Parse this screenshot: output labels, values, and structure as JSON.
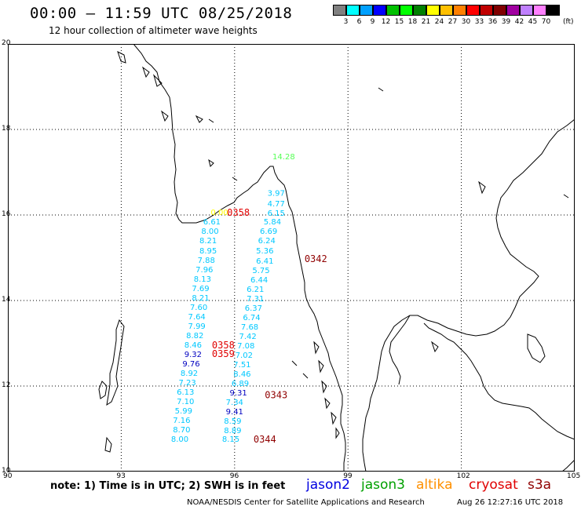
{
  "header": {
    "title": "00:00 – 11:59 UTC 08/25/2018",
    "subtitle": "12 hour collection of altimeter wave heights"
  },
  "color_scale": {
    "swatches": [
      "#808080",
      "#00ffff",
      "#00a0ff",
      "#0000ff",
      "#00c000",
      "#00ff00",
      "#008000",
      "#ffff00",
      "#ffc000",
      "#ff8000",
      "#ff0000",
      "#c00000",
      "#800000",
      "#a000a0",
      "#c080ff",
      "#ff80ff",
      "#000000"
    ],
    "ticks": [
      "3",
      "6",
      "9",
      "12",
      "15",
      "18",
      "21",
      "24",
      "27",
      "30",
      "33",
      "36",
      "39",
      "42",
      "45",
      "70"
    ],
    "unit": "(ft)"
  },
  "axes": {
    "lat_labels": [
      "20",
      "18",
      "16",
      "14",
      "12",
      "10"
    ],
    "lat_values": [
      20,
      18,
      16,
      14,
      12,
      10
    ],
    "lon_labels": [
      "90",
      "93",
      "96",
      "99",
      "102",
      "105"
    ],
    "lon_values": [
      90,
      93,
      96,
      99,
      102,
      105
    ]
  },
  "observations": [
    {
      "text": "14.28",
      "lon": 97.3,
      "lat": 17.3,
      "color": "#55ff55"
    },
    {
      "text": "3.97",
      "lon": 97.1,
      "lat": 16.45,
      "color": "#00c8ff"
    },
    {
      "text": "4.77",
      "lon": 97.1,
      "lat": 16.2,
      "color": "#00c8ff"
    },
    {
      "text": "6.15",
      "lon": 97.1,
      "lat": 15.98,
      "color": "#00c8ff"
    },
    {
      "text": "5.84",
      "lon": 97.0,
      "lat": 15.78,
      "color": "#00c8ff"
    },
    {
      "text": "6.69",
      "lon": 96.9,
      "lat": 15.56,
      "color": "#00c8ff"
    },
    {
      "text": "6.24",
      "lon": 96.85,
      "lat": 15.34,
      "color": "#00c8ff"
    },
    {
      "text": "5.36",
      "lon": 96.8,
      "lat": 15.1,
      "color": "#00c8ff"
    },
    {
      "text": "6.41",
      "lon": 96.8,
      "lat": 14.86,
      "color": "#00c8ff"
    },
    {
      "text": "5.75",
      "lon": 96.7,
      "lat": 14.64,
      "color": "#00c8ff"
    },
    {
      "text": "6.44",
      "lon": 96.65,
      "lat": 14.42,
      "color": "#00c8ff"
    },
    {
      "text": "6.21",
      "lon": 96.55,
      "lat": 14.2,
      "color": "#00c8ff"
    },
    {
      "text": "7.31",
      "lon": 96.55,
      "lat": 13.98,
      "color": "#00c8ff"
    },
    {
      "text": "6.37",
      "lon": 96.5,
      "lat": 13.76,
      "color": "#00c8ff"
    },
    {
      "text": "6.74",
      "lon": 96.45,
      "lat": 13.54,
      "color": "#00c8ff"
    },
    {
      "text": "7.68",
      "lon": 96.4,
      "lat": 13.32,
      "color": "#00c8ff"
    },
    {
      "text": "7.42",
      "lon": 96.35,
      "lat": 13.1,
      "color": "#00c8ff"
    },
    {
      "text": "7.08",
      "lon": 96.3,
      "lat": 12.88,
      "color": "#00c8ff"
    },
    {
      "text": "7.02",
      "lon": 96.25,
      "lat": 12.66,
      "color": "#00c8ff"
    },
    {
      "text": "7.51",
      "lon": 96.2,
      "lat": 12.44,
      "color": "#00c8ff"
    },
    {
      "text": "8.46",
      "lon": 96.2,
      "lat": 12.22,
      "color": "#00c8ff"
    },
    {
      "text": "6.89",
      "lon": 96.15,
      "lat": 12.0,
      "color": "#00c8ff"
    },
    {
      "text": "9.31",
      "lon": 96.1,
      "lat": 11.78,
      "color": "#0000c0"
    },
    {
      "text": "7.34",
      "lon": 96.0,
      "lat": 11.56,
      "color": "#00c8ff"
    },
    {
      "text": "9.41",
      "lon": 96.0,
      "lat": 11.34,
      "color": "#0000c0"
    },
    {
      "text": "8.59",
      "lon": 95.95,
      "lat": 11.12,
      "color": "#00c8ff"
    },
    {
      "text": "8.89",
      "lon": 95.95,
      "lat": 10.9,
      "color": "#00c8ff"
    },
    {
      "text": "8.15",
      "lon": 95.9,
      "lat": 10.7,
      "color": "#00c8ff"
    },
    {
      "text": "0.00",
      "lon": 95.6,
      "lat": 16.0,
      "color": "#ffff00"
    },
    {
      "text": "6.61",
      "lon": 95.4,
      "lat": 15.78,
      "color": "#00c8ff"
    },
    {
      "text": "8.00",
      "lon": 95.35,
      "lat": 15.56,
      "color": "#00c8ff"
    },
    {
      "text": "8.21",
      "lon": 95.3,
      "lat": 15.34,
      "color": "#00c8ff"
    },
    {
      "text": "8.95",
      "lon": 95.3,
      "lat": 15.1,
      "color": "#00c8ff"
    },
    {
      "text": "7.88",
      "lon": 95.25,
      "lat": 14.88,
      "color": "#00c8ff"
    },
    {
      "text": "7.96",
      "lon": 95.2,
      "lat": 14.66,
      "color": "#00c8ff"
    },
    {
      "text": "8.13",
      "lon": 95.15,
      "lat": 14.44,
      "color": "#00c8ff"
    },
    {
      "text": "7.69",
      "lon": 95.1,
      "lat": 14.22,
      "color": "#00c8ff"
    },
    {
      "text": "8.21",
      "lon": 95.1,
      "lat": 14.0,
      "color": "#00c8ff"
    },
    {
      "text": "7.60",
      "lon": 95.05,
      "lat": 13.78,
      "color": "#00c8ff"
    },
    {
      "text": "7.64",
      "lon": 95.0,
      "lat": 13.56,
      "color": "#00c8ff"
    },
    {
      "text": "7.99",
      "lon": 95.0,
      "lat": 13.34,
      "color": "#00c8ff"
    },
    {
      "text": "8.82",
      "lon": 94.95,
      "lat": 13.12,
      "color": "#00c8ff"
    },
    {
      "text": "8.46",
      "lon": 94.9,
      "lat": 12.9,
      "color": "#00c8ff"
    },
    {
      "text": "9.32",
      "lon": 94.9,
      "lat": 12.68,
      "color": "#0000c0"
    },
    {
      "text": "9.76",
      "lon": 94.85,
      "lat": 12.46,
      "color": "#0000c0"
    },
    {
      "text": "8.92",
      "lon": 94.8,
      "lat": 12.24,
      "color": "#00c8ff"
    },
    {
      "text": "7.23",
      "lon": 94.75,
      "lat": 12.02,
      "color": "#00c8ff"
    },
    {
      "text": "6.13",
      "lon": 94.7,
      "lat": 11.8,
      "color": "#00c8ff"
    },
    {
      "text": "7.10",
      "lon": 94.7,
      "lat": 11.58,
      "color": "#00c8ff"
    },
    {
      "text": "5.99",
      "lon": 94.65,
      "lat": 11.36,
      "color": "#00c8ff"
    },
    {
      "text": "7.16",
      "lon": 94.6,
      "lat": 11.14,
      "color": "#00c8ff"
    },
    {
      "text": "8.70",
      "lon": 94.6,
      "lat": 10.92,
      "color": "#00c8ff"
    },
    {
      "text": "8.00",
      "lon": 94.55,
      "lat": 10.7,
      "color": "#00c8ff"
    }
  ],
  "pass_labels": [
    {
      "text": "0358",
      "lon": 96.1,
      "lat": 15.98,
      "color": "#e00000"
    },
    {
      "text": "0342",
      "lon": 98.15,
      "lat": 14.9,
      "color": "#900000"
    },
    {
      "text": "0358",
      "lon": 95.7,
      "lat": 12.88,
      "color": "#e00000"
    },
    {
      "text": "0359",
      "lon": 95.7,
      "lat": 12.68,
      "color": "#e00000"
    },
    {
      "text": "0343",
      "lon": 97.1,
      "lat": 11.72,
      "color": "#900000"
    },
    {
      "text": "0344",
      "lon": 96.8,
      "lat": 10.68,
      "color": "#900000"
    }
  ],
  "legend": {
    "note": "note: 1) Time is in UTC; 2) SWH is in feet",
    "items": [
      {
        "label": "jason2",
        "color": "#0000e0"
      },
      {
        "label": "jason3",
        "color": "#00a000"
      },
      {
        "label": "altika",
        "color": "#ff9000"
      },
      {
        "label": "cryosat",
        "color": "#e00000"
      },
      {
        "label": "s3a",
        "color": "#900000"
      }
    ]
  },
  "footer": {
    "credit": "NOAA/NESDIS Center for Satellite Applications and Research",
    "timestamp": "Aug 26 12:27:16 UTC 2018"
  }
}
